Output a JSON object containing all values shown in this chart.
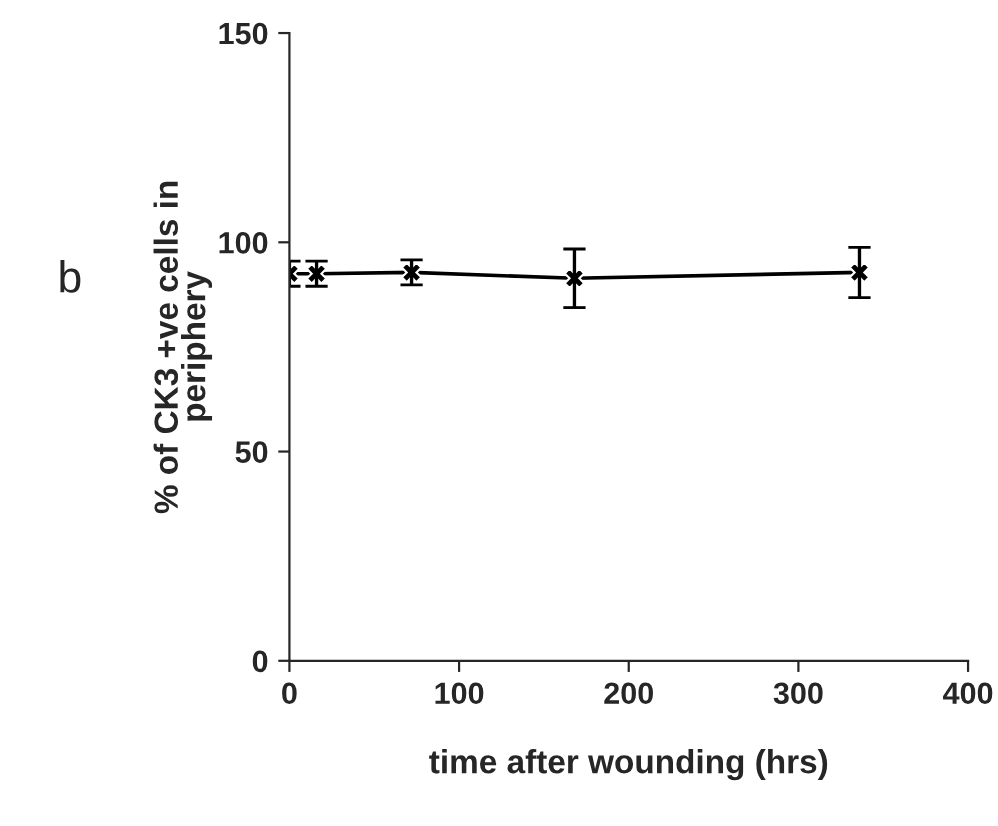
{
  "chart_data": {
    "type": "line",
    "x": [
      0,
      16,
      72,
      168,
      336
    ],
    "series": [
      {
        "color": "#000000",
        "values": [
          92.5,
          92.5,
          92.8,
          91.4,
          92.8
        ],
        "errors": [
          3,
          3,
          3,
          7,
          6
        ]
      }
    ],
    "xlabel": "time after wounding (hrs)",
    "ylabel": "% of CK3 +ve cells in\nperiphery",
    "annotations": [
      "b"
    ],
    "xlim": [
      0,
      400
    ],
    "xticks": [
      0,
      100,
      200,
      300,
      400
    ],
    "ylim": [
      0,
      150
    ],
    "yticks": [
      0,
      50,
      100,
      150
    ],
    "marker": "cross",
    "line_style": "solid",
    "grid": false,
    "legend": false
  }
}
